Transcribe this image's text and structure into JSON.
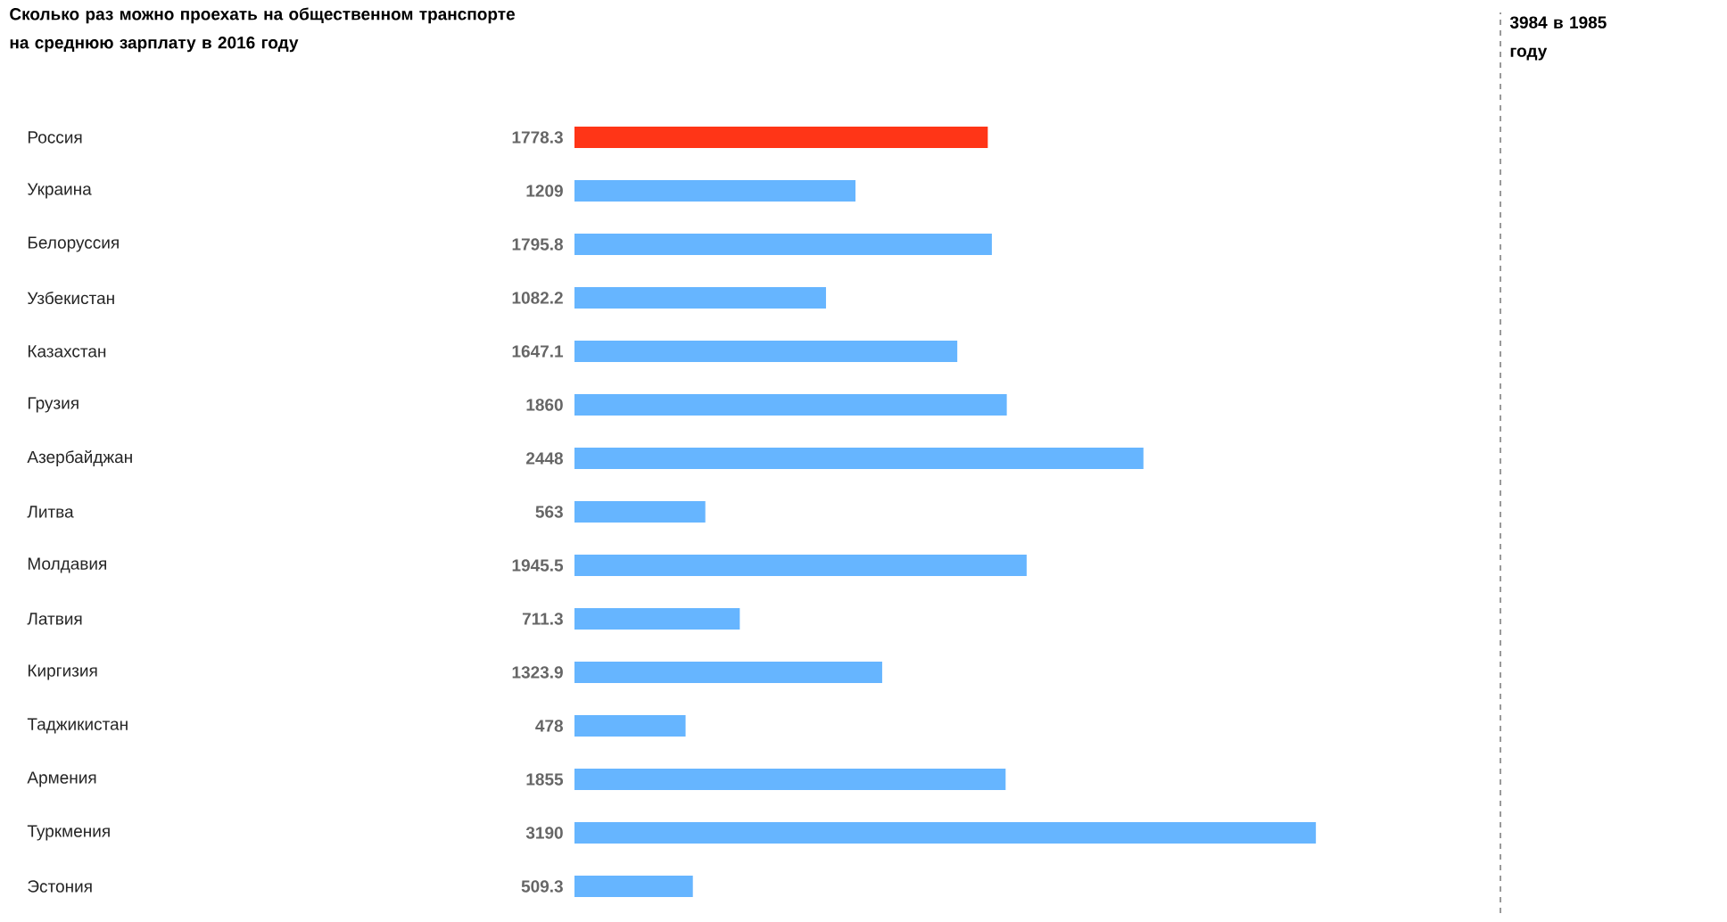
{
  "chart_data": {
    "type": "bar",
    "orientation": "horizontal",
    "title": "Сколько раз можно проехать на общественном транспорте на среднюю зарплату в 2016 году",
    "categories": [
      "Россия",
      "Украина",
      "Белоруссия",
      "Узбекистан",
      "Казахстан",
      "Грузия",
      "Азербайджан",
      "Литва",
      "Молдавия",
      "Латвия",
      "Киргизия",
      "Таджикистан",
      "Армения",
      "Туркмения",
      "Эстония"
    ],
    "values": [
      1778.3,
      1209,
      1795.8,
      1082.2,
      1647.1,
      1860,
      2448,
      563,
      1945.5,
      711.3,
      1323.9,
      478,
      1855,
      3190,
      509.3
    ],
    "colors": [
      "#ff3517",
      "#66b5ff",
      "#66b5ff",
      "#66b5ff",
      "#66b5ff",
      "#66b5ff",
      "#66b5ff",
      "#66b5ff",
      "#66b5ff",
      "#66b5ff",
      "#66b5ff",
      "#66b5ff",
      "#66b5ff",
      "#66b5ff",
      "#66b5ff"
    ],
    "data_labels": true,
    "ref_lines": [
      {
        "axis": "x",
        "value": 3984,
        "label": "3984 в 1985 году",
        "color": "#000000",
        "line_style": "dashed"
      }
    ]
  }
}
